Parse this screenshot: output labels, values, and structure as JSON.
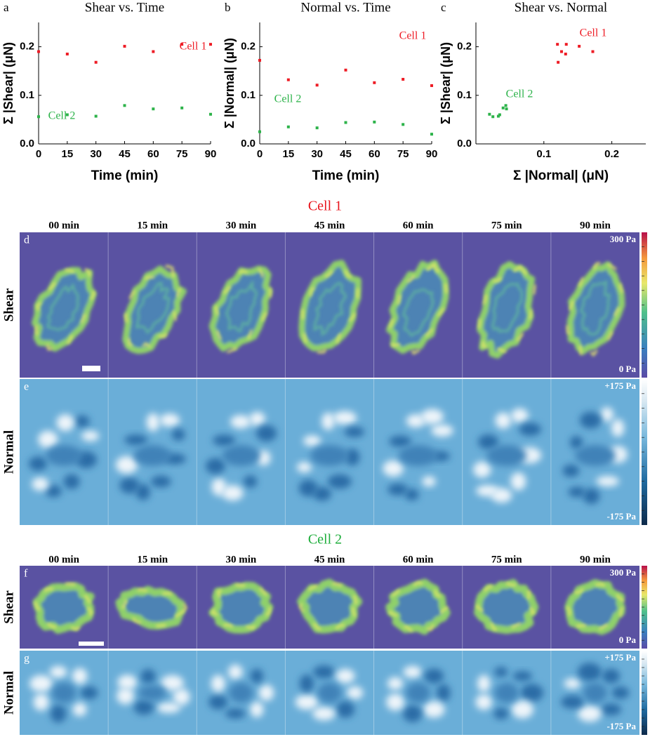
{
  "chart_data": [
    {
      "type": "scatter",
      "panel": "a",
      "title": "Shear vs. Time",
      "x_label": "Time (min)",
      "y_label": "Σ |Shear| (μN)",
      "x": [
        0,
        15,
        30,
        45,
        60,
        75,
        90
      ],
      "series": [
        {
          "name": "Cell 1",
          "color": "#ee1c25",
          "values": [
            0.19,
            0.185,
            0.168,
            0.201,
            0.19,
            0.205,
            0.205
          ]
        },
        {
          "name": "Cell 2",
          "color": "#2db34a",
          "values": [
            0.056,
            0.06,
            0.057,
            0.079,
            0.072,
            0.074,
            0.061
          ]
        }
      ],
      "xlim": [
        0,
        90
      ],
      "xticks": [
        0,
        15,
        30,
        45,
        60,
        75,
        90
      ],
      "ylim": [
        0,
        0.25
      ],
      "yticks": [
        {
          "value": 0,
          "label": "0.0"
        },
        0.1,
        0.2
      ]
    },
    {
      "type": "scatter",
      "panel": "b",
      "title": "Normal vs. Time",
      "x_label": "Time (min)",
      "y_label": "Σ |Normal| (μN)",
      "x": [
        0,
        15,
        30,
        45,
        60,
        75,
        90
      ],
      "series": [
        {
          "name": "Cell 1",
          "color": "#ee1c25",
          "values": [
            0.172,
            0.132,
            0.121,
            0.152,
            0.126,
            0.133,
            0.12
          ]
        },
        {
          "name": "Cell 2",
          "color": "#2db34a",
          "values": [
            0.025,
            0.035,
            0.033,
            0.044,
            0.045,
            0.04,
            0.02
          ]
        }
      ],
      "xlim": [
        0,
        90
      ],
      "xticks": [
        0,
        15,
        30,
        45,
        60,
        75,
        90
      ],
      "ylim": [
        0,
        0.25
      ],
      "yticks": [
        {
          "value": 0,
          "label": "0.0"
        },
        0.1,
        0.2
      ]
    },
    {
      "type": "scatter",
      "panel": "c",
      "title": "Shear vs. Normal",
      "x_label": "Σ |Normal| (μN)",
      "y_label": "Σ |Shear| (μN)",
      "series": [
        {
          "name": "Cell 1",
          "color": "#ee1c25",
          "x": [
            0.172,
            0.132,
            0.121,
            0.152,
            0.126,
            0.133,
            0.12
          ],
          "values": [
            0.19,
            0.185,
            0.168,
            0.201,
            0.19,
            0.205,
            0.205
          ]
        },
        {
          "name": "Cell 2",
          "color": "#2db34a",
          "x": [
            0.025,
            0.035,
            0.033,
            0.044,
            0.045,
            0.04,
            0.02
          ],
          "values": [
            0.056,
            0.06,
            0.057,
            0.079,
            0.072,
            0.074,
            0.061
          ]
        }
      ],
      "xlim": [
        0,
        0.25
      ],
      "xticks": [
        0.1,
        0.2
      ],
      "ylim": [
        0,
        0.25
      ],
      "yticks": [
        {
          "value": 0,
          "label": "0.0"
        },
        0.1,
        0.2
      ]
    }
  ],
  "sections": [
    {
      "title": "Cell 1",
      "color": "#e8141c",
      "times": [
        "00 min",
        "15 min",
        "30 min",
        "45 min",
        "60 min",
        "75 min",
        "90 min"
      ],
      "rows": [
        {
          "letter": "d",
          "label": "Shear",
          "scale_max": "300 Pa",
          "scale_min": "0 Pa"
        },
        {
          "letter": "e",
          "label": "Normal",
          "scale_max": "+175 Pa",
          "scale_min": "-175 Pa"
        }
      ]
    },
    {
      "title": "Cell 2",
      "color": "#1fae3c",
      "times": [
        "00 min",
        "15 min",
        "30 min",
        "45 min",
        "60 min",
        "75 min",
        "90 min"
      ],
      "rows": [
        {
          "letter": "f",
          "label": "Shear",
          "scale_max": "300 Pa",
          "scale_min": "0 Pa"
        },
        {
          "letter": "g",
          "label": "Normal",
          "scale_max": "+175 Pa",
          "scale_min": "-175 Pa"
        }
      ]
    }
  ]
}
